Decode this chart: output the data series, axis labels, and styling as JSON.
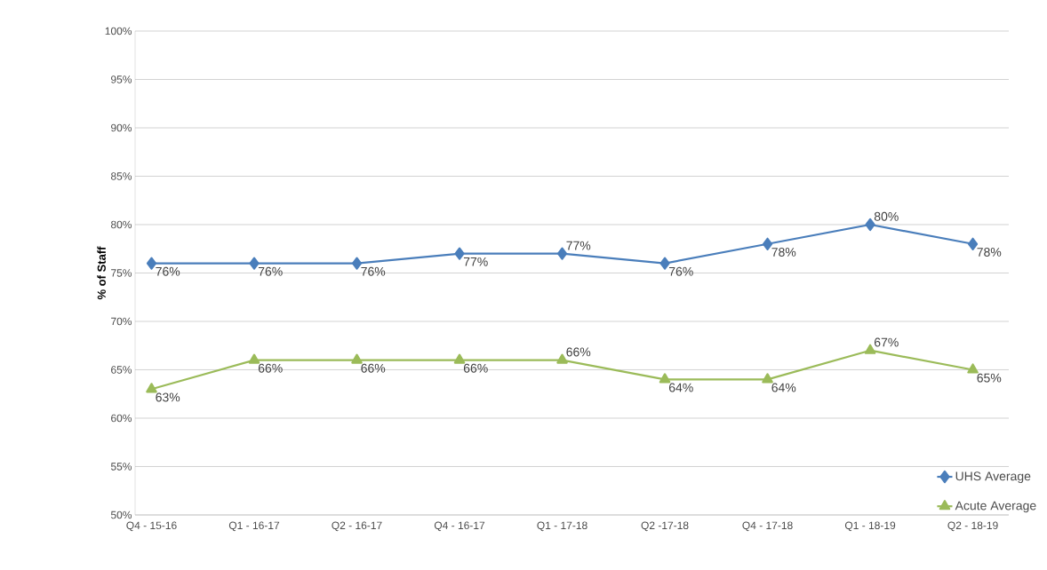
{
  "chart_data": {
    "type": "line",
    "ylabel": "**% of Staff**",
    "categories": [
      "Q4 - 15-16",
      "Q1 - 16-17",
      "Q2 - 16-17",
      "Q4 - 16-17",
      "Q1 - 17-18",
      "Q2 -17-18",
      "Q4 - 17-18",
      "Q1 - 18-19",
      "Q2 - 18-19"
    ],
    "series": [
      {
        "name": "UHS Average",
        "color": "#4a7ebb",
        "marker": "diamond",
        "values": [
          76,
          76,
          76,
          77,
          77,
          76,
          78,
          80,
          78
        ],
        "value_labels": [
          "76%",
          "76%",
          "76%",
          "77%",
          "77%",
          "76%",
          "78%",
          "80%",
          "78%"
        ]
      },
      {
        "name": "Acute Average",
        "color": "#9bbb59",
        "marker": "triangle",
        "values": [
          63,
          66,
          66,
          66,
          66,
          64,
          64,
          67,
          65
        ],
        "value_labels": [
          "63%",
          "66%",
          "66%",
          "66%",
          "66%",
          "64%",
          "64%",
          "67%",
          "65%"
        ]
      }
    ],
    "ylim": [
      50,
      100
    ],
    "yticks": [
      {
        "value": 50,
        "label": "50%"
      },
      {
        "value": 55,
        "label": "55%"
      },
      {
        "value": 60,
        "label": "60%"
      },
      {
        "value": 65,
        "label": "65%"
      },
      {
        "value": 70,
        "label": "70%"
      },
      {
        "value": 75,
        "label": "75%"
      },
      {
        "value": 80,
        "label": "80%"
      },
      {
        "value": 85,
        "label": "85%"
      },
      {
        "value": 90,
        "label": "90%"
      },
      {
        "value": 95,
        "label": "95%"
      },
      {
        "value": 100,
        "label": "100%"
      }
    ],
    "grid": "y",
    "legend": "right"
  }
}
